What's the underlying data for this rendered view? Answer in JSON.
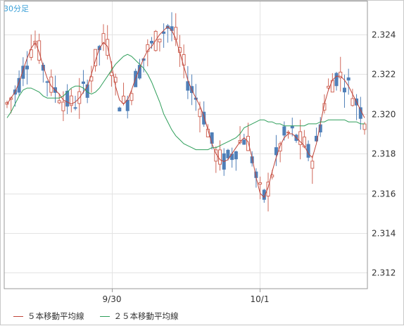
{
  "chart_data": {
    "type": "candlestick",
    "timeframe_label": "30分足",
    "x_tick_labels": [
      "9/30",
      "10/1"
    ],
    "y_ticks": [
      2.312,
      2.314,
      2.316,
      2.318,
      2.32,
      2.322,
      2.324
    ],
    "ylim": [
      2.3112,
      2.3257
    ],
    "grid": true,
    "legend_position": "bottom-left",
    "colors": {
      "up": "#d0685a",
      "down": "#4f7fb8",
      "ma5": "#c0453a",
      "ma25": "#2e9e5a",
      "grid": "#e3e3e3",
      "axis": "#999999",
      "plot_bg": "#ffffff"
    },
    "series": [
      {
        "name": "５本移動平均線",
        "values": [
          2.3205,
          2.3208,
          2.3211,
          2.3216,
          2.3222,
          2.3228,
          2.3233,
          2.3236,
          2.3231,
          2.3224,
          2.3218,
          2.3214,
          2.3212,
          2.321,
          2.3207,
          2.3206,
          2.3205,
          2.3206,
          2.3208,
          2.3211,
          2.3214,
          2.322,
          2.3227,
          2.3233,
          2.3236,
          2.3234,
          2.3225,
          2.3214,
          2.3207,
          2.3205,
          2.3207,
          2.3212,
          2.3218,
          2.3223,
          2.3228,
          2.3232,
          2.3234,
          2.3237,
          2.324,
          2.3242,
          2.3244,
          2.3242,
          2.3238,
          2.3231,
          2.3224,
          2.3217,
          2.3212,
          2.3208,
          2.3204,
          2.3199,
          2.3192,
          2.3185,
          2.318,
          2.3177,
          2.3176,
          2.3177,
          2.318,
          2.3183,
          2.3186,
          2.3188,
          2.3186,
          2.3178,
          2.3168,
          2.316,
          2.3158,
          2.3163,
          2.3171,
          2.3178,
          2.3184,
          2.3188,
          2.319,
          2.319,
          2.3188,
          2.3186,
          2.3184,
          2.318,
          2.3178,
          2.3185,
          2.3195,
          2.3205,
          2.3212,
          2.3217,
          2.3219,
          2.3219,
          2.3217,
          2.3214,
          2.321,
          2.3206,
          2.3202,
          2.3198
        ]
      },
      {
        "name": "２５本移動平均線",
        "values": [
          2.3198,
          2.3201,
          2.3205,
          2.3209,
          2.3212,
          2.3213,
          2.3213,
          2.3212,
          2.3211,
          2.3209,
          2.3208,
          2.3208,
          2.3208,
          2.3208,
          2.3209,
          2.3211,
          2.3213,
          2.3214,
          2.3214,
          2.3213,
          2.3211,
          2.321,
          2.3211,
          2.3213,
          2.3216,
          2.3219,
          2.3222,
          2.3225,
          2.3227,
          2.3229,
          2.323,
          2.3229,
          2.3227,
          2.3225,
          2.3223,
          2.322,
          2.3216,
          2.3211,
          2.3206,
          2.32,
          2.3196,
          2.3192,
          2.3189,
          2.3187,
          2.3185,
          2.3184,
          2.3183,
          2.3182,
          2.3182,
          2.3182,
          2.3182,
          2.3183,
          2.3183,
          2.3184,
          2.3185,
          2.3186,
          2.3187,
          2.3188,
          2.319,
          2.3193,
          2.3194,
          2.3195,
          2.3196,
          2.3197,
          2.3197,
          2.3196,
          2.3196,
          2.3195,
          2.3195,
          2.3194,
          2.3194,
          2.3194,
          2.3194,
          2.3194,
          2.3194,
          2.3195,
          2.3195,
          2.3195,
          2.3196,
          2.3196,
          2.3197,
          2.3197,
          2.3197,
          2.3197,
          2.3197,
          2.3196,
          2.3196,
          2.3196,
          2.3195,
          2.3195
        ]
      }
    ]
  }
}
